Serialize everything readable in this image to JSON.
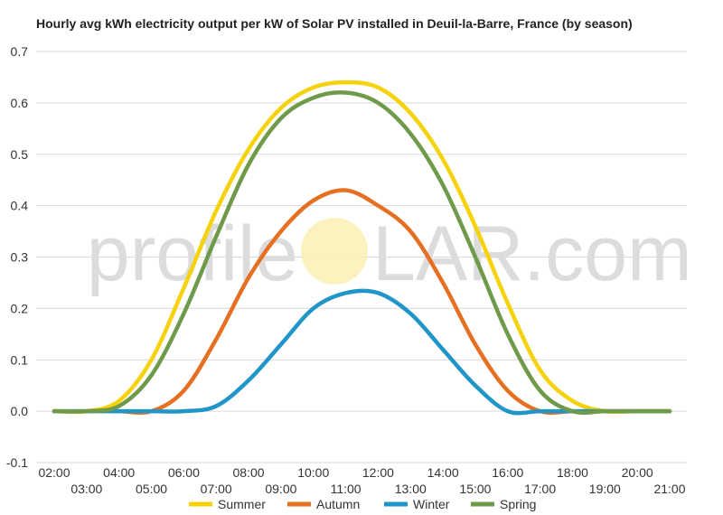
{
  "chart_data": {
    "type": "line",
    "title": "Hourly avg kWh electricity output per kW of Solar PV installed in Deuil-la-Barre, France (by season)",
    "xlabel": "",
    "ylabel": "",
    "ylim": [
      -0.1,
      0.7
    ],
    "yticks": [
      "0.7",
      "0.6",
      "0.5",
      "0.4",
      "0.3",
      "0.2",
      "0.1",
      "0.0",
      "-0.1"
    ],
    "grid": true,
    "legend_position": "bottom",
    "categories": [
      "02:00",
      "03:00",
      "04:00",
      "05:00",
      "06:00",
      "07:00",
      "08:00",
      "09:00",
      "10:00",
      "11:00",
      "12:00",
      "13:00",
      "14:00",
      "15:00",
      "16:00",
      "17:00",
      "18:00",
      "19:00",
      "20:00",
      "21:00"
    ],
    "series": [
      {
        "name": "Summer",
        "color": "#f5d20a",
        "values": [
          0.0,
          0.0,
          0.02,
          0.1,
          0.24,
          0.39,
          0.51,
          0.59,
          0.63,
          0.64,
          0.63,
          0.58,
          0.49,
          0.36,
          0.21,
          0.08,
          0.02,
          0.0,
          0.0,
          0.0
        ]
      },
      {
        "name": "Autumn",
        "color": "#e66f22",
        "values": [
          0.0,
          0.0,
          0.0,
          0.0,
          0.04,
          0.14,
          0.26,
          0.35,
          0.41,
          0.43,
          0.4,
          0.35,
          0.25,
          0.13,
          0.04,
          0.0,
          0.0,
          0.0,
          0.0,
          0.0
        ]
      },
      {
        "name": "Winter",
        "color": "#2095c8",
        "values": [
          0.0,
          0.0,
          0.0,
          0.0,
          0.0,
          0.01,
          0.06,
          0.13,
          0.2,
          0.23,
          0.23,
          0.19,
          0.12,
          0.05,
          0.0,
          0.0,
          0.0,
          0.0,
          0.0,
          0.0
        ]
      },
      {
        "name": "Spring",
        "color": "#6e9a4a",
        "values": [
          0.0,
          0.0,
          0.01,
          0.07,
          0.19,
          0.34,
          0.48,
          0.57,
          0.61,
          0.62,
          0.6,
          0.54,
          0.44,
          0.3,
          0.15,
          0.04,
          0.0,
          0.0,
          0.0,
          0.0
        ]
      }
    ]
  },
  "watermark": {
    "left": "profile",
    "right": "LAR.com"
  }
}
